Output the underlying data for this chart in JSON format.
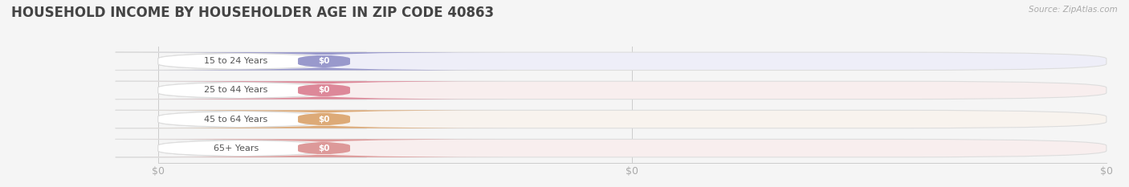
{
  "title": "HOUSEHOLD INCOME BY HOUSEHOLDER AGE IN ZIP CODE 40863",
  "source_text": "Source: ZipAtlas.com",
  "categories": [
    "15 to 24 Years",
    "25 to 44 Years",
    "45 to 64 Years",
    "65+ Years"
  ],
  "values": [
    0,
    0,
    0,
    0
  ],
  "bar_colors": [
    "#9999cc",
    "#dd8899",
    "#ddaa77",
    "#dd9999"
  ],
  "bar_bg_colors": [
    "#eeeef8",
    "#f8eeee",
    "#f8f3ee",
    "#f8eeee"
  ],
  "row_bg_colors": [
    "#f2f2f8",
    "#f8f2f2",
    "#f8f4f0",
    "#f8f2f2"
  ],
  "tick_label_color": "#aaaaaa",
  "title_color": "#444444",
  "background_color": "#f5f5f5",
  "plot_bg_color": "#f5f5f5",
  "xlim": [
    0,
    1
  ],
  "title_fontsize": 12,
  "tick_fontsize": 9,
  "x_tick_labels": [
    "$0",
    "$0",
    "$0"
  ],
  "x_tick_positions": [
    0.0,
    0.5,
    1.0
  ]
}
